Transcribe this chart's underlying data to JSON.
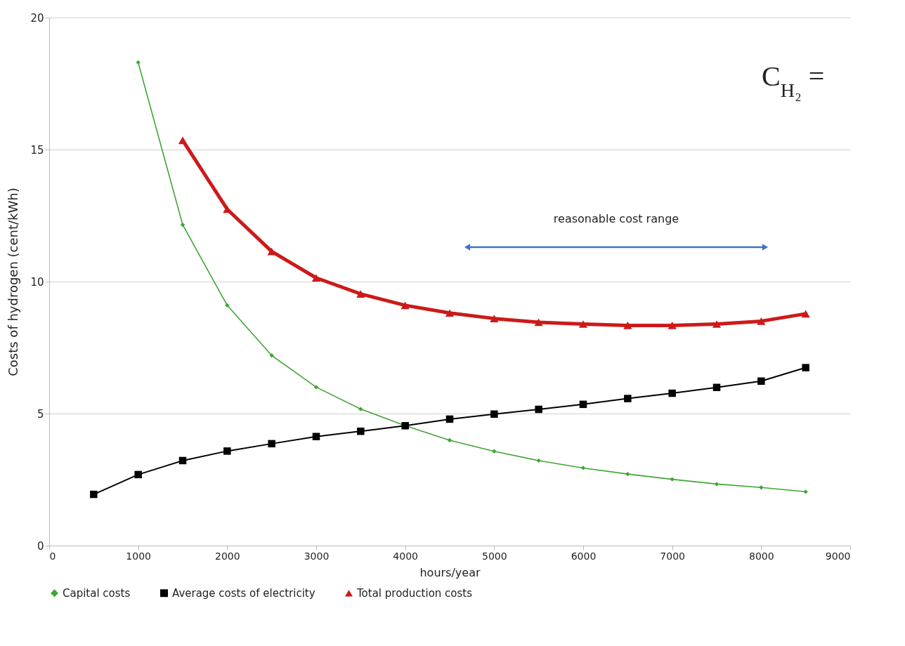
{
  "chart_data": {
    "type": "line",
    "xlabel": "hours/year",
    "ylabel": "Costs of hydrogen (cent/kWh)",
    "x": [
      500,
      1000,
      1500,
      2000,
      2500,
      3000,
      3500,
      4000,
      4500,
      5000,
      5500,
      6000,
      6500,
      7000,
      7500,
      8000,
      8500
    ],
    "series": [
      {
        "name": "Capital costs",
        "color": "#3fa535",
        "marker": "diamond",
        "values": [
          null,
          18.3,
          12.15,
          9.1,
          7.2,
          6.0,
          5.17,
          4.54,
          3.99,
          3.57,
          3.22,
          2.94,
          2.71,
          2.51,
          2.33,
          2.2,
          2.04
        ]
      },
      {
        "name": "Average costs of electricity",
        "color": "#000000",
        "marker": "square",
        "values": [
          1.94,
          2.69,
          3.22,
          3.58,
          3.86,
          4.13,
          4.33,
          4.54,
          4.79,
          4.98,
          5.16,
          5.35,
          5.57,
          5.77,
          5.99,
          6.23,
          6.74
        ]
      },
      {
        "name": "Total production costs",
        "color": "#cc1a1a",
        "marker": "triangle",
        "values": [
          null,
          null,
          15.35,
          12.74,
          11.14,
          10.14,
          9.53,
          9.1,
          8.81,
          8.6,
          8.46,
          8.39,
          8.34,
          8.34,
          8.39,
          8.5,
          8.78
        ]
      }
    ],
    "xlim": [
      0,
      9000
    ],
    "xticks": [
      0,
      1000,
      2000,
      3000,
      4000,
      5000,
      6000,
      7000,
      8000,
      9000
    ],
    "ylim": [
      0,
      20
    ],
    "yticks": [
      0,
      5,
      10,
      15,
      20
    ],
    "grid": "y",
    "legend": "bottom",
    "annotations": [
      "reasonable cost range",
      "C$_{H₂}$ ="
    ]
  }
}
